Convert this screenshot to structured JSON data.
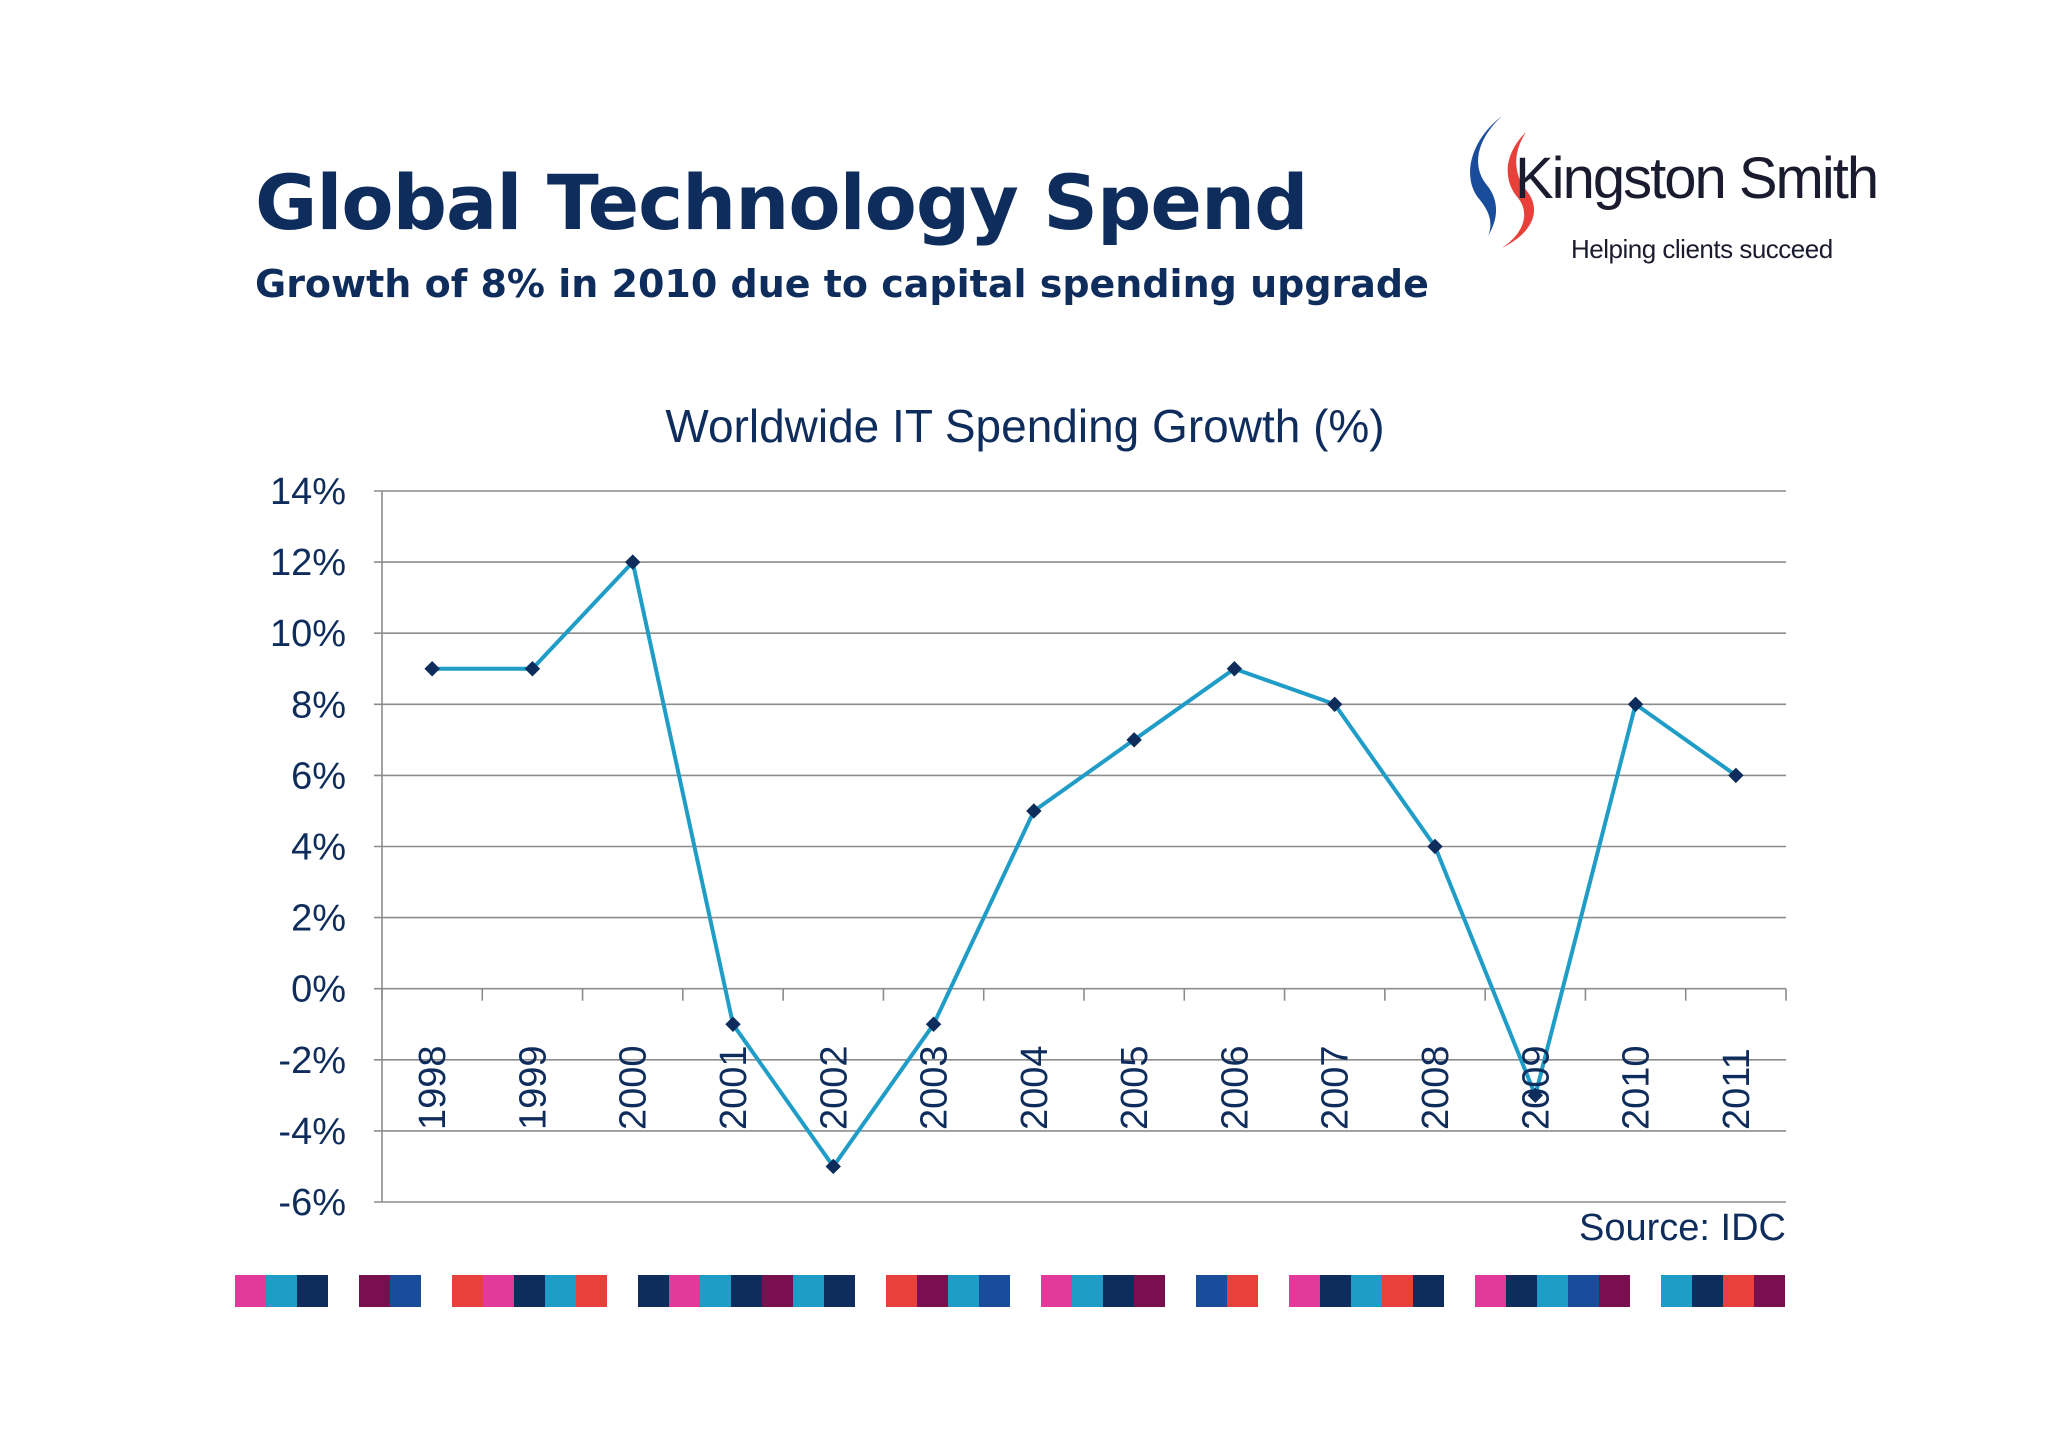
{
  "slide": {
    "title": "Global Technology Spend",
    "subtitle": "Growth of 8% in 2010 due to capital spending upgrade"
  },
  "logo": {
    "name": "Kingston Smith",
    "tagline": "Helping clients succeed",
    "colors": {
      "blue": "#1a4c9c",
      "red": "#e8413b",
      "text": "#1b1b2f"
    }
  },
  "chart_data": {
    "type": "line",
    "title": "Worldwide IT Spending Growth (%)",
    "xlabel": "",
    "ylabel": "",
    "categories": [
      "1998",
      "1999",
      "2000",
      "2001",
      "2002",
      "2003",
      "2004",
      "2005",
      "2006",
      "2007",
      "2008",
      "2009",
      "2010",
      "2011"
    ],
    "series": [
      {
        "values": [
          9,
          9,
          12,
          -1,
          -5,
          -1,
          5,
          7,
          9,
          8,
          4,
          -3,
          8,
          6
        ],
        "color": "#1f9dc7",
        "marker": "diamond",
        "marker_color": "#0f2d5c"
      }
    ],
    "ylim": [
      -6,
      14
    ],
    "yticks": [
      14,
      12,
      10,
      8,
      6,
      4,
      2,
      0,
      -2,
      -4,
      -6
    ],
    "ytick_labels": [
      "14%",
      "12%",
      "10%",
      "8%",
      "6%",
      "4%",
      "2%",
      "0%",
      "-2%",
      "-4%",
      "-6%"
    ],
    "grid": true,
    "legend": "none"
  },
  "source_note": "Source: IDC",
  "decor": {
    "color_bar": [
      "#e2399a",
      "#1f9dc7",
      "#0f2d5c",
      "#7a0f4f",
      "#1a4c9c",
      "#e8413b",
      "#e2399a",
      "#0f2d5c",
      "#1f9dc7",
      "#e8413b",
      "#0f2d5c",
      "#e2399a",
      "#1f9dc7",
      "#0f2d5c",
      "#7a0f4f",
      "#1f9dc7",
      "#0f2d5c",
      "#e8413b",
      "#7a0f4f",
      "#1f9dc7",
      "#1a4c9c",
      "#e2399a",
      "#1f9dc7",
      "#0f2d5c",
      "#7a0f4f",
      "#1a4c9c",
      "#e8413b",
      "#e2399a",
      "#0f2d5c",
      "#1f9dc7",
      "#e8413b",
      "#0f2d5c",
      "#e2399a",
      "#0f2d5c",
      "#1f9dc7",
      "#1a4c9c",
      "#7a0f4f",
      "#1f9dc7",
      "#0f2d5c",
      "#e8413b",
      "#7a0f4f"
    ]
  }
}
